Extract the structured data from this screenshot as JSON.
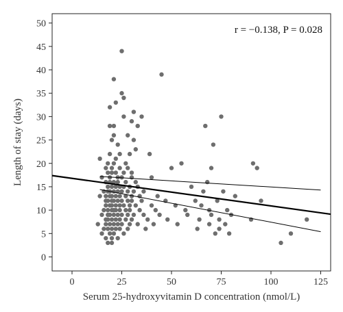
{
  "chart_data": {
    "type": "scatter",
    "xlabel": "Serum 25-hydroxyvitamin D concentration (nmol/L)",
    "ylabel": "Length of stay (days)",
    "xlim": [
      -10,
      130
    ],
    "ylim": [
      -3,
      52
    ],
    "x_ticks": [
      0,
      25,
      50,
      75,
      100,
      125
    ],
    "y_ticks": [
      0,
      5,
      10,
      15,
      20,
      25,
      30,
      35,
      40,
      45,
      50
    ],
    "annotation": "r = −0.138, P = 0.028",
    "annotation_position": "top-right",
    "grid": false,
    "legend": "none",
    "colors": {
      "points": "#6e6e6e",
      "line": "#000000",
      "frame": "#222222"
    },
    "series": [
      {
        "x": [
          13,
          14,
          14,
          15,
          15,
          15,
          16,
          16,
          16,
          17,
          17,
          17,
          17,
          17,
          17,
          17,
          17,
          18,
          18,
          18,
          18,
          18,
          18,
          18,
          18,
          18,
          18,
          19,
          19,
          19,
          19,
          19,
          19,
          19,
          19,
          19,
          19,
          19,
          20,
          20,
          20,
          20,
          20,
          20,
          20,
          20,
          20,
          20,
          20,
          20,
          21,
          21,
          21,
          21,
          21,
          21,
          21,
          21,
          21,
          21,
          21,
          22,
          22,
          22,
          22,
          22,
          22,
          22,
          22,
          22,
          23,
          23,
          23,
          23,
          23,
          23,
          23,
          23,
          24,
          24,
          24,
          24,
          24,
          24,
          24,
          24,
          25,
          25,
          25,
          25,
          25,
          25,
          25,
          26,
          26,
          26,
          26,
          26,
          26,
          27,
          27,
          27,
          27,
          27,
          28,
          28,
          28,
          28,
          28,
          28,
          29,
          29,
          29,
          29,
          29,
          30,
          30,
          30,
          30,
          30,
          30,
          31,
          31,
          31,
          31,
          32,
          32,
          32,
          33,
          33,
          33,
          34,
          34,
          35,
          35,
          36,
          36,
          37,
          38,
          39,
          40,
          40,
          41,
          42,
          43,
          44,
          45,
          47,
          48,
          50,
          52,
          53,
          55,
          57,
          58,
          60,
          62,
          63,
          64,
          65,
          66,
          67,
          68,
          69,
          69,
          70,
          70,
          71,
          72,
          73,
          74,
          74,
          75,
          76,
          77,
          78,
          79,
          80,
          82,
          90,
          91,
          93,
          95,
          105,
          110,
          118
        ],
        "y": [
          7,
          13,
          21,
          5,
          17,
          9,
          6,
          10,
          14,
          8,
          12,
          16,
          4,
          11,
          19,
          13,
          7,
          3,
          10,
          14,
          18,
          9,
          6,
          12,
          20,
          15,
          8,
          11,
          17,
          5,
          13,
          22,
          9,
          7,
          16,
          14,
          28,
          32,
          4,
          8,
          12,
          18,
          10,
          6,
          15,
          25,
          11,
          3,
          13,
          19,
          9,
          14,
          7,
          20,
          12,
          5,
          26,
          10,
          16,
          28,
          38,
          8,
          13,
          11,
          18,
          6,
          15,
          33,
          10,
          21,
          7,
          14,
          9,
          17,
          4,
          12,
          24,
          16,
          11,
          8,
          13,
          19,
          6,
          15,
          22,
          10,
          14,
          35,
          44,
          9,
          12,
          17,
          7,
          18,
          5,
          11,
          15,
          34,
          30,
          13,
          8,
          20,
          10,
          16,
          26,
          12,
          6,
          14,
          9,
          19,
          22,
          7,
          15,
          11,
          10,
          29,
          17,
          13,
          8,
          12,
          18,
          31,
          25,
          14,
          9,
          23,
          11,
          16,
          28,
          15,
          7,
          13,
          10,
          30,
          12,
          9,
          14,
          6,
          8,
          22,
          11,
          17,
          7,
          10,
          13,
          9,
          39,
          12,
          8,
          19,
          11,
          7,
          20,
          10,
          9,
          15,
          12,
          6,
          8,
          11,
          14,
          28,
          16,
          10,
          7,
          19,
          9,
          24,
          5,
          12,
          8,
          6,
          30,
          14,
          7,
          10,
          5,
          9,
          13,
          8,
          20,
          19,
          12,
          3,
          5,
          8
        ]
      }
    ],
    "regression": {
      "slope": -0.059,
      "intercept": 16.8,
      "x_range": [
        -10,
        130
      ]
    },
    "ci_upper": {
      "x": [
        14,
        125
      ],
      "y": [
        17.2,
        14.3
      ]
    },
    "ci_lower": {
      "x": [
        14,
        125
      ],
      "y": [
        14.4,
        5.4
      ]
    }
  }
}
